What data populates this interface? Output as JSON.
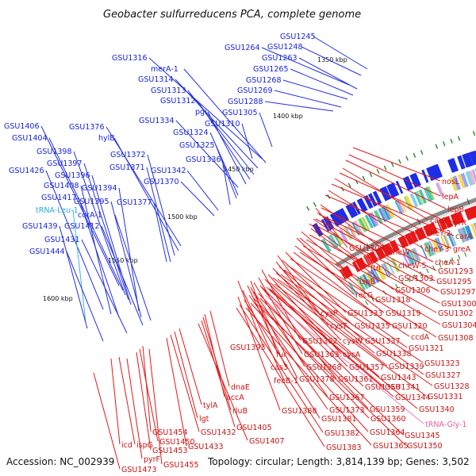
{
  "title": "Geobacter sulfurreducens PCA, complete genome",
  "footer": {
    "accession": "Accession: NC_002939",
    "summary": "Topology: circular; Length: 3,814,139 bp; Genes: 3,502"
  },
  "ticks": [
    "1350 kbp",
    "1400 kbp",
    "1450 kbp",
    "1500 kbp",
    "1550 kbp",
    "1600 kbp"
  ],
  "colors": {
    "blue": "#1a24d8",
    "red": "#c41414",
    "cyan": "#2aaed8",
    "pink": "#e060a0",
    "backbone": "#8a8a8a"
  },
  "labels": {
    "GSU1245": "GSU1245",
    "GSU1248": "GSU1248",
    "GSU1264": "GSU1264",
    "GSU1263": "GSU1263",
    "GSU1265": "GSU1265",
    "GSU1268": "GSU1268",
    "GSU1269": "GSU1269",
    "GSU1288": "GSU1288",
    "GSU1316": "GSU1316",
    "merA_1": "merA-1",
    "GSU1314": "GSU1314",
    "GSU1313": "GSU1313",
    "GSU1312": "GSU1312",
    "pgi": "pgi",
    "GSU1305": "GSU1305",
    "GSU1310": "GSU1310",
    "GSU1334": "GSU1334",
    "GSU1324": "GSU1324",
    "GSU1325": "GSU1325",
    "GSU1336": "GSU1336",
    "GSU1342": "GSU1342",
    "GSU1370": "GSU1370",
    "GSU1376": "GSU1376",
    "hylB": "hylB",
    "GSU1372": "GSU1372",
    "GSU1371": "GSU1371",
    "GSU1406": "GSU1406",
    "GSU1404": "GSU1404",
    "GSU1398": "GSU1398",
    "GSU1397": "GSU1397",
    "GSU1426": "GSU1426",
    "GSU1396": "GSU1396",
    "GSU1408": "GSU1408",
    "GSU1394": "GSU1394",
    "GSU1417": "GSU1417",
    "GSU1395": "GSU1395",
    "GSU1377": "GSU1377",
    "tRNA_Leu_1": "tRNA-Leu-1",
    "corA_1": "corA-1",
    "GSU1439": "GSU1439",
    "GSU1412": "GSU1412",
    "GSU1431": "GSU1431",
    "GSU1444": "GSU1444",
    "nosL": "nosL",
    "lepA": "lepA",
    "lepB": "lepB",
    "carB": "carB",
    "pyrR": "pyrR",
    "cheY_2": "cheY-2",
    "carA": "carA",
    "cheY_3": "cheY-3",
    "greA": "greA",
    "GSU1309": "GSU1309",
    "cheW": "cheW",
    "cheW_5": "cheW-5",
    "cheA_1": "cheA-1",
    "GSU1293": "GSU1293",
    "ftn": "ftn",
    "GSU1303": "GSU1303",
    "GSU1295": "GSU1295",
    "GSU1306": "GSU1306",
    "GSU1297": "GSU1297",
    "ispB": "ispB",
    "recG": "recG",
    "GSU1318": "GSU1318",
    "GSU1300": "GSU1300",
    "GSU1319": "GSU1319",
    "GSU1302": "GSU1302",
    "cysP": "cysP",
    "GSU1333": "GSU1333",
    "GSU1320": "GSU1320",
    "GSU1304": "GSU1304",
    "cysT": "cysT",
    "GSU1335": "GSU1335",
    "ccdA": "ccdA",
    "GSU1308": "GSU1308",
    "GSU1362": "GSU1362",
    "cysW": "cysW",
    "GSU1337": "GSU1337",
    "GSU1321": "GSU1321",
    "GSU1393": "GSU1393",
    "GSU1363": "GSU1363",
    "cysA": "cysA",
    "GSU1338": "GSU1338",
    "fur": "fur",
    "GSU1368": "GSU1368",
    "GSU1357": "GSU1357",
    "GSU1339": "GSU1339",
    "GSU1323": "GSU1323",
    "cas3": "cas3",
    "GSU1378": "GSU1378",
    "GSU1361": "GSU1361",
    "GSU1343": "GSU1343",
    "GSU1327": "GSU1327",
    "feoB_1": "feoB-1",
    "GSU1367": "GSU1367",
    "GSU1358": "GSU1358",
    "GSU1341": "GSU1341",
    "GSU1328": "GSU1328",
    "GSU1344": "GSU1344",
    "GSU1331": "GSU1331",
    "GSU1388": "GSU1388",
    "GSU1373": "GSU1373",
    "GSU1359": "GSU1359",
    "GSU1340": "GSU1340",
    "GSU1381": "GSU1381",
    "GSU1360": "GSU1360",
    "tRNA_Gly_1": "tRNA-Gly-1",
    "GSU1345": "GSU1345",
    "GSU1382": "GSU1382",
    "GSU1364": "GSU1364",
    "GSU1350": "GSU1350",
    "GSU1383": "GSU1383",
    "GSU1365": "GSU1365",
    "dnaE": "dnaE",
    "accA": "accA",
    "rluB": "rluB",
    "GSU1405": "GSU1405",
    "GSU1407": "GSU1407",
    "tylA": "tylA",
    "lgt": "lgt",
    "GSU1432": "GSU1432",
    "GSU1433": "GSU1433",
    "GSU1454": "GSU1454",
    "GSU1450": "GSU1450",
    "GSU1453": "GSU1453",
    "icd": "icd",
    "ispG": "ispG",
    "pyrF": "pyrF",
    "GSU1455": "GSU1455",
    "GSU1473": "GSU1473"
  }
}
